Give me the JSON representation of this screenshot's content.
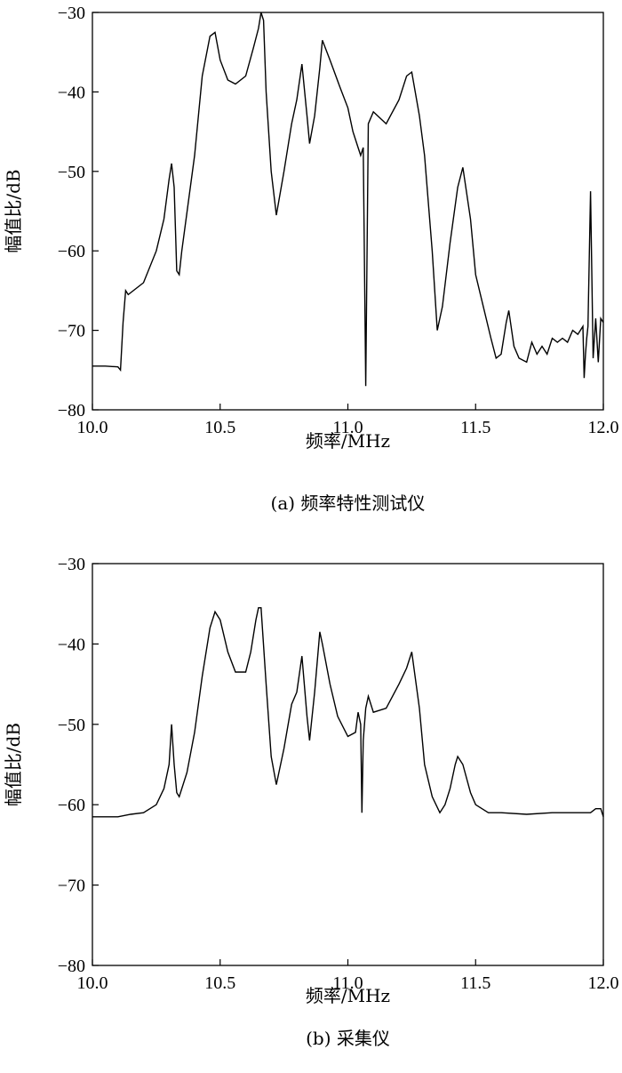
{
  "chart_data": [
    {
      "type": "line",
      "caption": "(a) 频率特性测试仪",
      "xlabel": "频率/MHz",
      "ylabel": "幅值比/dB",
      "xlim": [
        10.0,
        12.0
      ],
      "ylim": [
        -80,
        -30
      ],
      "xticks": [
        "10.0",
        "10.5",
        "11.0",
        "11.5",
        "12.0"
      ],
      "yticks": [
        "-30",
        "-40",
        "-50",
        "-60",
        "-70",
        "-80"
      ],
      "xtick_values": [
        10.0,
        10.5,
        11.0,
        11.5,
        12.0
      ],
      "ytick_values": [
        -30,
        -40,
        -50,
        -60,
        -70,
        -80
      ],
      "grid": false,
      "x": [
        10.0,
        10.05,
        10.1,
        10.11,
        10.12,
        10.13,
        10.14,
        10.2,
        10.25,
        10.28,
        10.3,
        10.31,
        10.32,
        10.33,
        10.34,
        10.35,
        10.4,
        10.43,
        10.46,
        10.48,
        10.5,
        10.53,
        10.56,
        10.6,
        10.63,
        10.65,
        10.66,
        10.67,
        10.68,
        10.7,
        10.72,
        10.75,
        10.78,
        10.8,
        10.82,
        10.84,
        10.85,
        10.87,
        10.89,
        10.9,
        10.93,
        10.97,
        11.0,
        11.02,
        11.03,
        11.04,
        11.05,
        11.06,
        11.07,
        11.08,
        11.1,
        11.15,
        11.2,
        11.23,
        11.25,
        11.28,
        11.3,
        11.33,
        11.35,
        11.37,
        11.4,
        11.43,
        11.45,
        11.48,
        11.5,
        11.53,
        11.56,
        11.58,
        11.6,
        11.62,
        11.63,
        11.65,
        11.67,
        11.7,
        11.72,
        11.74,
        11.76,
        11.78,
        11.8,
        11.82,
        11.84,
        11.86,
        11.88,
        11.9,
        11.92,
        11.925,
        11.93,
        11.935,
        11.94,
        11.95,
        11.96,
        11.97,
        11.98,
        11.99,
        12.0
      ],
      "series": [
        {
          "values": [
            -74.5,
            -74.5,
            -74.6,
            -75.0,
            -69.0,
            -65.0,
            -65.5,
            -64.0,
            -60.0,
            -56.0,
            -51.0,
            -49.0,
            -52.0,
            -62.5,
            -63.0,
            -60.0,
            -48.0,
            -38.0,
            -33.0,
            -32.5,
            -36.0,
            -38.5,
            -39.0,
            -38.0,
            -34.5,
            -32.0,
            -30.0,
            -31.0,
            -40.0,
            -50.0,
            -55.5,
            -50.0,
            -44.0,
            -41.0,
            -36.5,
            -43.0,
            -46.5,
            -43.0,
            -37.0,
            -33.5,
            -36.0,
            -39.5,
            -42.0,
            -45.0,
            -46.0,
            -47.0,
            -48.0,
            -47.0,
            -77.0,
            -44.0,
            -42.5,
            -44.0,
            -41.0,
            -38.0,
            -37.5,
            -43.0,
            -48.0,
            -60.0,
            -70.0,
            -67.0,
            -59.0,
            -52.0,
            -49.5,
            -56.0,
            -63.0,
            -67.0,
            -71.0,
            -73.5,
            -73.0,
            -69.0,
            -67.5,
            -72.0,
            -73.5,
            -74.0,
            -71.5,
            -73.0,
            -72.0,
            -73.0,
            -71.0,
            -71.5,
            -71.0,
            -71.5,
            -70.0,
            -70.5,
            -69.5,
            -76.0,
            -73.0,
            -71.0,
            -69.5,
            -52.5,
            -73.5,
            -68.5,
            -74.0,
            -68.5,
            -69.0
          ]
        }
      ]
    },
    {
      "type": "line",
      "caption": "(b) 采集仪",
      "xlabel": "频率/MHz",
      "ylabel": "幅值比/dB",
      "xlim": [
        10.0,
        12.0
      ],
      "ylim": [
        -80,
        -30
      ],
      "xticks": [
        "10.0",
        "10.5",
        "11.0",
        "11.5",
        "12.0"
      ],
      "yticks": [
        "-30",
        "-40",
        "-50",
        "-60",
        "-70",
        "-80"
      ],
      "xtick_values": [
        10.0,
        10.5,
        11.0,
        11.5,
        12.0
      ],
      "ytick_values": [
        -30,
        -40,
        -50,
        -60,
        -70,
        -80
      ],
      "grid": false,
      "x": [
        10.0,
        10.05,
        10.1,
        10.15,
        10.2,
        10.25,
        10.28,
        10.3,
        10.31,
        10.32,
        10.33,
        10.34,
        10.37,
        10.4,
        10.43,
        10.46,
        10.48,
        10.5,
        10.53,
        10.56,
        10.6,
        10.62,
        10.64,
        10.65,
        10.66,
        10.68,
        10.7,
        10.72,
        10.75,
        10.78,
        10.8,
        10.82,
        10.84,
        10.85,
        10.87,
        10.89,
        10.9,
        10.93,
        10.96,
        11.0,
        11.03,
        11.04,
        11.05,
        11.055,
        11.06,
        11.07,
        11.08,
        11.1,
        11.15,
        11.2,
        11.23,
        11.25,
        11.28,
        11.3,
        11.33,
        11.36,
        11.38,
        11.4,
        11.42,
        11.43,
        11.45,
        11.48,
        11.5,
        11.55,
        11.6,
        11.7,
        11.8,
        11.9,
        11.95,
        11.97,
        11.99,
        12.0
      ],
      "series": [
        {
          "values": [
            -61.5,
            -61.5,
            -61.5,
            -61.2,
            -61.0,
            -60.0,
            -58.0,
            -55.0,
            -50.0,
            -55.0,
            -58.5,
            -59.0,
            -56.0,
            -51.0,
            -44.0,
            -38.0,
            -36.0,
            -37.0,
            -41.0,
            -43.5,
            -43.5,
            -41.0,
            -37.0,
            -35.5,
            -35.5,
            -45.0,
            -54.0,
            -57.5,
            -53.0,
            -47.5,
            -46.0,
            -41.5,
            -49.0,
            -52.0,
            -46.0,
            -38.5,
            -40.0,
            -45.0,
            -49.0,
            -51.5,
            -51.0,
            -48.5,
            -50.0,
            -61.0,
            -52.0,
            -48.0,
            -46.5,
            -48.5,
            -48.0,
            -45.0,
            -43.0,
            -41.0,
            -48.0,
            -55.0,
            -59.0,
            -61.0,
            -60.0,
            -58.0,
            -55.0,
            -54.0,
            -55.0,
            -58.5,
            -60.0,
            -61.0,
            -61.0,
            -61.2,
            -61.0,
            -61.0,
            -61.0,
            -60.5,
            -60.5,
            -61.5
          ]
        }
      ]
    }
  ]
}
